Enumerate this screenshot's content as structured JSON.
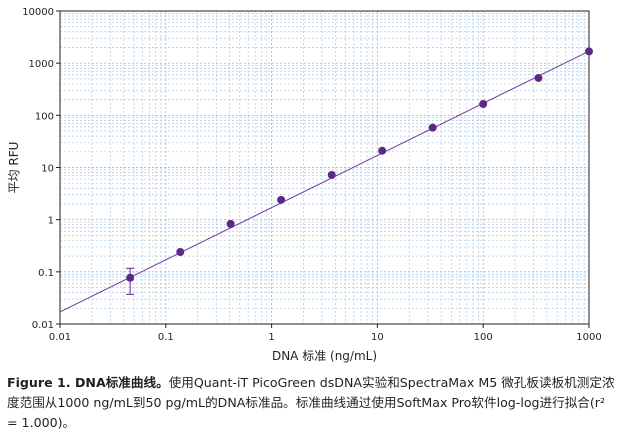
{
  "chart_data": {
    "type": "scatter",
    "xlabel": "DNA 标准 (ng/mL)",
    "ylabel": "平均 RFU",
    "x_scale": "log",
    "y_scale": "log",
    "xlim": [
      0.01,
      1000
    ],
    "ylim": [
      0.01,
      10000
    ],
    "x_ticks": [
      "0.01",
      "0.1",
      "1",
      "10",
      "100",
      "1000"
    ],
    "y_ticks": [
      "0.01",
      "0.1",
      "1",
      "10",
      "100",
      "1000",
      "10000"
    ],
    "grid": true,
    "point_color": "#5b2a86",
    "line_color": "#6a3d9a",
    "series": [
      {
        "x": [
          0.046,
          0.137,
          0.41,
          1.23,
          3.7,
          11.1,
          33.3,
          100,
          333,
          1000
        ],
        "y": [
          0.077,
          0.24,
          0.83,
          2.4,
          7.2,
          21,
          58,
          165,
          520,
          1680
        ],
        "y_error": [
          0.04,
          0,
          0,
          0,
          0,
          0,
          0,
          0,
          0,
          0
        ]
      }
    ],
    "fit_line": {
      "x": [
        0.01,
        1000
      ],
      "y": [
        0.017,
        1700
      ]
    }
  },
  "caption": {
    "lead": "Figure 1. DNA标准曲线。",
    "body": "使用Quant-iT PicoGreen dsDNA实验和SpectraMax M5 微孔板读板机测定浓度范围从1000 ng/mL到50 pg/mL的DNA标准品。标准曲线通过使用SoftMax Pro软件log-log进行拟合(r² = 1.000)。"
  }
}
